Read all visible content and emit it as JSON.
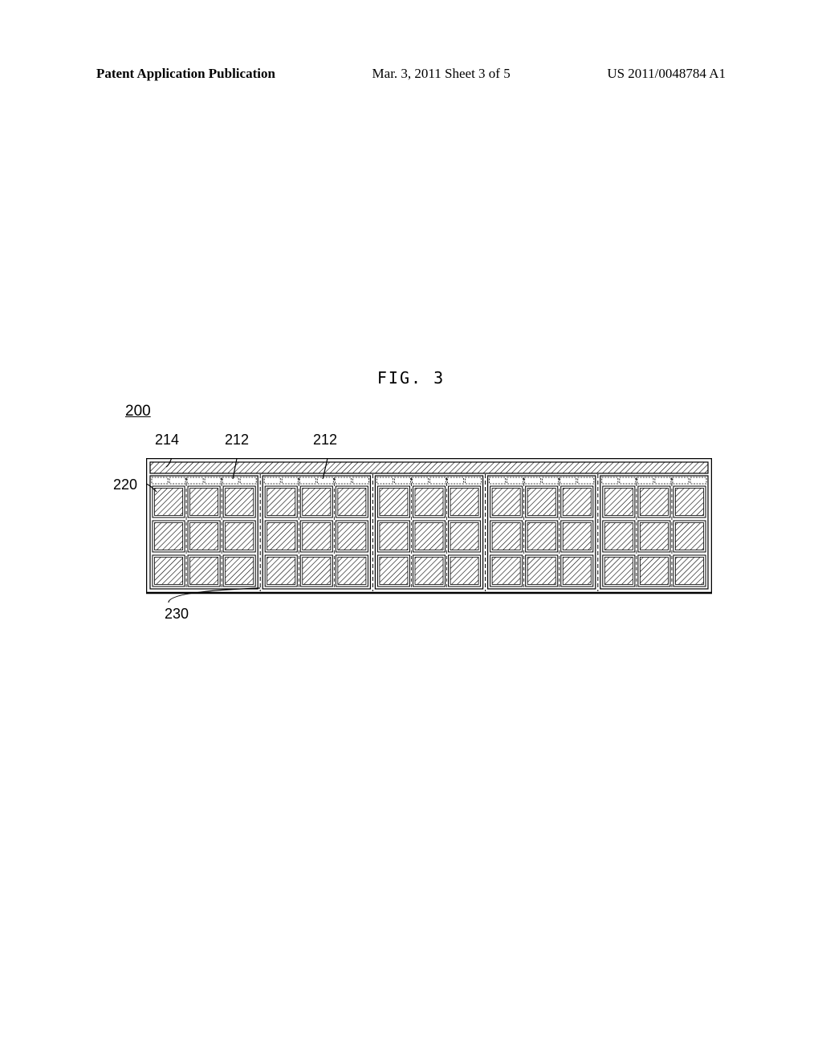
{
  "header": {
    "left": "Patent Application Publication",
    "mid": "Mar. 3, 2011  Sheet 3 of 5",
    "right": "US 2011/0048784 A1"
  },
  "figure": {
    "title": "FIG. 3",
    "ref_main": "200",
    "labels": {
      "l214": "214",
      "l212a": "212",
      "l212b": "212",
      "l220": "220",
      "l230": "230"
    },
    "layout": {
      "outer_width": 705,
      "outer_height": 168,
      "top_strip_height": 14,
      "groups": 5,
      "cells_per_group": 3,
      "rows_per_group": 3,
      "group_gap": 6,
      "cell_gap": 4,
      "outer_padding": 5
    },
    "colors": {
      "stroke": "#000000",
      "background": "#ffffff"
    }
  }
}
